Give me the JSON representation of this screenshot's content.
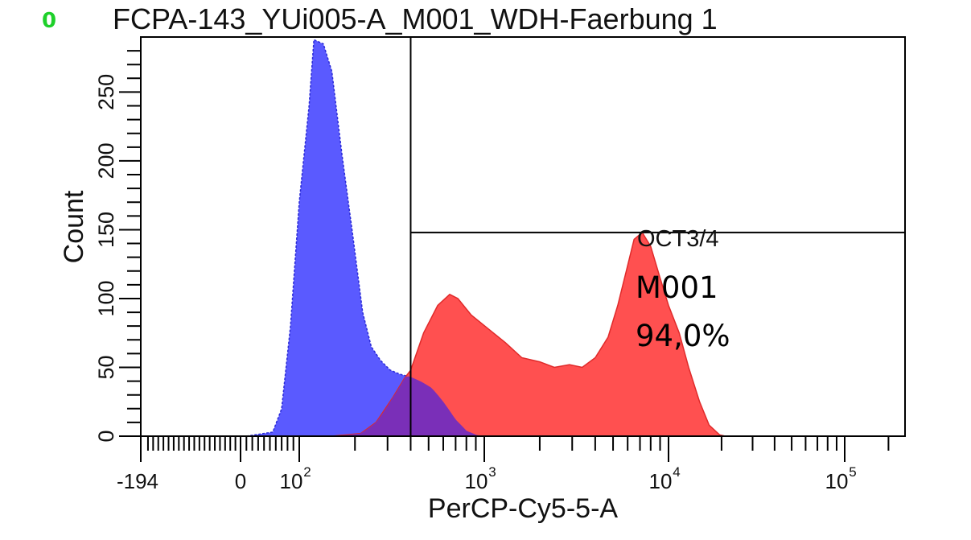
{
  "chart_data": {
    "type": "area",
    "marker": "0",
    "title": "FCPA-143_YUi005-A_M001_WDH-Faerbung 1",
    "xlabel": "PerCP-Cy5-5-A",
    "ylabel": "Count",
    "xscale": "biexponential",
    "xlim": [
      -194,
      260000
    ],
    "ylim": [
      0,
      290
    ],
    "x_ticks": [
      {
        "value": -194,
        "label": "-194"
      },
      {
        "value": 0,
        "label": "0"
      },
      {
        "value": 100,
        "base": "10",
        "exp": "2"
      },
      {
        "value": 1000,
        "base": "10",
        "exp": "3"
      },
      {
        "value": 10000,
        "base": "10",
        "exp": "4"
      },
      {
        "value": 100000,
        "base": "10",
        "exp": "5"
      }
    ],
    "y_ticks": [
      0,
      50,
      100,
      150,
      200,
      250
    ],
    "series": [
      {
        "color": "#5a5aff",
        "points": [
          [
            10,
            0
          ],
          [
            55,
            3
          ],
          [
            70,
            20
          ],
          [
            85,
            80
          ],
          [
            100,
            170
          ],
          [
            113,
            240
          ],
          [
            120,
            288
          ],
          [
            135,
            285
          ],
          [
            150,
            265
          ],
          [
            170,
            205
          ],
          [
            195,
            145
          ],
          [
            220,
            90
          ],
          [
            245,
            65
          ],
          [
            275,
            55
          ],
          [
            310,
            48
          ],
          [
            350,
            45
          ],
          [
            400,
            43
          ],
          [
            450,
            40
          ],
          [
            520,
            35
          ],
          [
            600,
            25
          ],
          [
            700,
            12
          ],
          [
            800,
            4
          ],
          [
            900,
            1
          ],
          [
            1000,
            0
          ]
        ]
      },
      {
        "color": "#ff5050",
        "points": [
          [
            150,
            0
          ],
          [
            215,
            2
          ],
          [
            260,
            10
          ],
          [
            320,
            28
          ],
          [
            370,
            42
          ],
          [
            400,
            48
          ],
          [
            470,
            75
          ],
          [
            560,
            95
          ],
          [
            650,
            103
          ],
          [
            720,
            100
          ],
          [
            850,
            88
          ],
          [
            1050,
            78
          ],
          [
            1300,
            68
          ],
          [
            1600,
            57
          ],
          [
            2000,
            54
          ],
          [
            2400,
            50
          ],
          [
            2900,
            52
          ],
          [
            3400,
            50
          ],
          [
            4000,
            57
          ],
          [
            4700,
            72
          ],
          [
            5300,
            95
          ],
          [
            5900,
            120
          ],
          [
            6500,
            143
          ],
          [
            7200,
            148
          ],
          [
            8000,
            138
          ],
          [
            9000,
            115
          ],
          [
            10000,
            95
          ],
          [
            11500,
            75
          ],
          [
            13000,
            50
          ],
          [
            15000,
            25
          ],
          [
            17000,
            8
          ],
          [
            19500,
            1
          ],
          [
            21000,
            0
          ]
        ]
      }
    ],
    "gate": {
      "name": "OCT3/4",
      "id": "M001",
      "percent": "94,0%",
      "x_min": 400,
      "x_max": 260000,
      "y_level": 148
    }
  }
}
